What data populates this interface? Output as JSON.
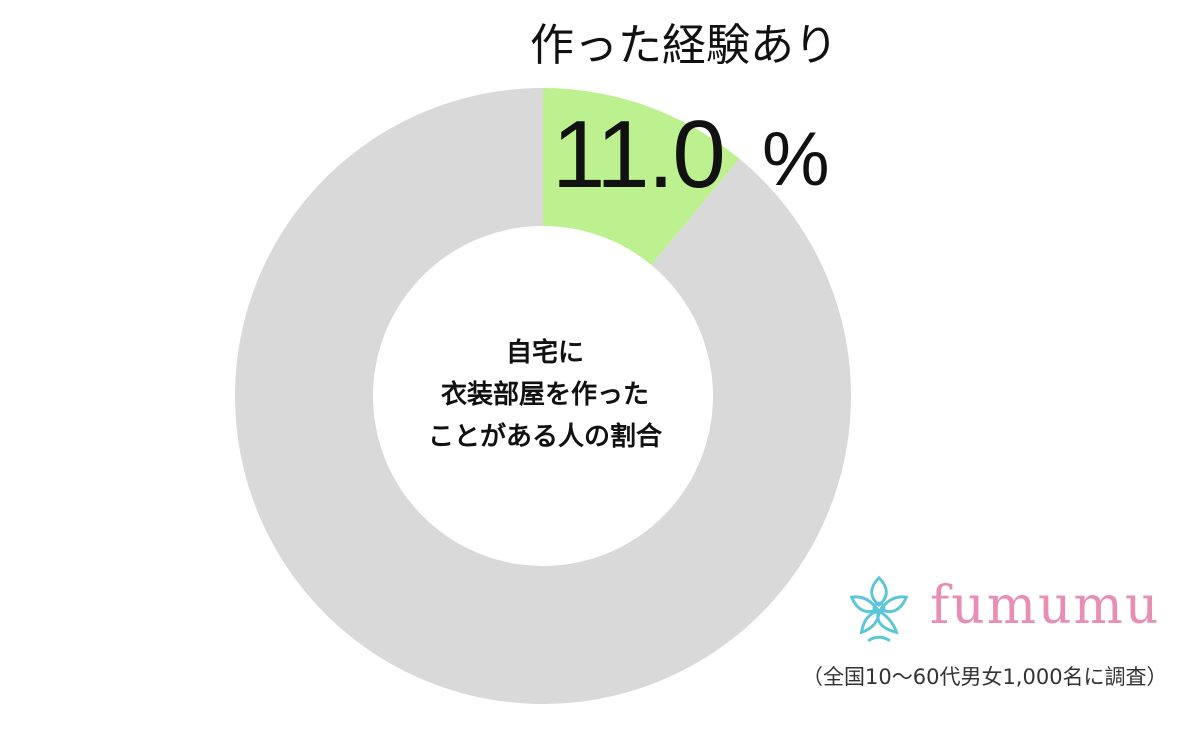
{
  "chart_data": {
    "type": "pie",
    "variant": "donut",
    "slices": [
      {
        "label": "作った経験あり",
        "value": 11.0,
        "color": "#bdf08e"
      },
      {
        "label": "",
        "value": 89.0,
        "color": "#d9d9d9"
      }
    ],
    "highlight": {
      "label": "作った経験あり",
      "value_text": "11.0",
      "unit": "%"
    },
    "center_text": [
      "自宅に",
      "衣装部屋を作った",
      "ことがある人の割合"
    ]
  },
  "brand": {
    "logo_icon": "fumumu-flower-icon",
    "name": "fumumu",
    "colors": {
      "text": "#e88db4",
      "mark": "#5bc6d6"
    }
  },
  "footnote": "（全国10～60代男女1,000名に調査）"
}
